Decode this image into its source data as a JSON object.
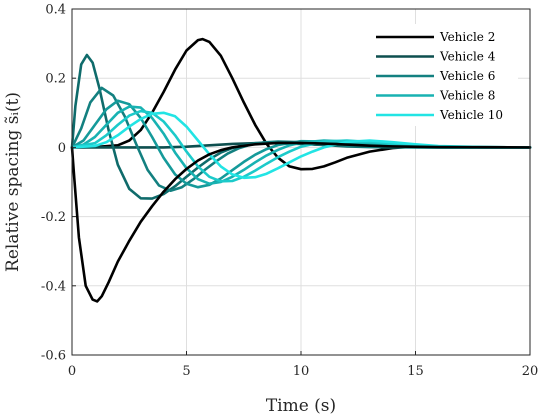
{
  "chart_data": {
    "type": "line",
    "xlabel": "Time (s)",
    "ylabel": "Relative spacing s̃ᵢ(t)",
    "xlim": [
      0,
      20
    ],
    "ylim": [
      -0.6,
      0.4
    ],
    "xticks": [
      "0",
      "5",
      "10",
      "15",
      "20"
    ],
    "xtick_values": [
      0,
      5,
      10,
      15,
      20
    ],
    "yticks": [
      "0.4",
      "0.2",
      "0",
      "-0.2",
      "-0.4",
      "-0.6"
    ],
    "ytick_values": [
      0.4,
      0.2,
      0,
      -0.2,
      -0.4,
      -0.6
    ],
    "grid": true,
    "legend_position": "top-right",
    "series": [
      {
        "name": "Vehicle 2",
        "color": "#000000",
        "x": [
          0,
          1,
          2,
          2.5,
          3,
          3.5,
          4,
          4.5,
          5,
          5.5,
          5.7,
          6,
          6.5,
          7,
          7.5,
          8,
          8.5,
          9,
          9.5,
          10,
          10.5,
          11,
          11.5,
          12,
          13,
          14,
          15,
          16,
          17,
          20
        ],
        "y": [
          0,
          0.001,
          0.006,
          0.02,
          0.05,
          0.1,
          0.16,
          0.225,
          0.28,
          0.31,
          0.313,
          0.305,
          0.265,
          0.2,
          0.13,
          0.065,
          0.01,
          -0.03,
          -0.055,
          -0.063,
          -0.062,
          -0.055,
          -0.043,
          -0.03,
          -0.012,
          -0.002,
          0.003,
          0.002,
          0.001,
          0
        ]
      },
      {
        "name": "Vehicle 4",
        "color": "#0d4f4f",
        "x": [
          0,
          1,
          2,
          3,
          4,
          5,
          6,
          7,
          8,
          9,
          10,
          11,
          12,
          14,
          17,
          20
        ],
        "y": [
          0,
          0,
          0,
          0,
          0,
          0.002,
          0.006,
          0.01,
          0.012,
          0.012,
          0.01,
          0.007,
          0.004,
          0.001,
          0,
          0
        ]
      },
      {
        "name": "",
        "color": "#0f6b6b",
        "x": [
          0,
          0.15,
          0.4,
          0.65,
          0.9,
          1.2,
          1.6,
          2,
          2.5,
          3,
          3.5,
          4,
          4.5,
          5,
          5.5,
          6,
          6.5,
          7,
          7.5,
          8,
          8.5,
          9,
          10,
          11,
          12,
          13,
          15,
          20
        ],
        "y": [
          0,
          0.12,
          0.24,
          0.267,
          0.245,
          0.17,
          0.05,
          -0.05,
          -0.12,
          -0.147,
          -0.148,
          -0.135,
          -0.112,
          -0.085,
          -0.058,
          -0.034,
          -0.015,
          -0.002,
          0.007,
          0.012,
          0.014,
          0.014,
          0.011,
          0.007,
          0.003,
          0.001,
          0,
          0
        ]
      },
      {
        "name": "Vehicle 6",
        "color": "#138080",
        "x": [
          0,
          0.4,
          0.8,
          1.3,
          1.8,
          2.3,
          2.8,
          3.3,
          3.8,
          4.3,
          4.8,
          5.3,
          5.8,
          6.3,
          6.8,
          7.3,
          7.8,
          8.3,
          9,
          10,
          11,
          12,
          13,
          14,
          16,
          20
        ],
        "y": [
          0,
          0.055,
          0.13,
          0.172,
          0.15,
          0.09,
          0.01,
          -0.065,
          -0.11,
          -0.125,
          -0.115,
          -0.092,
          -0.065,
          -0.04,
          -0.018,
          -0.002,
          0.008,
          0.014,
          0.017,
          0.015,
          0.01,
          0.005,
          0.002,
          0.001,
          0,
          0
        ]
      },
      {
        "name": "",
        "color": "#159a9a",
        "x": [
          0,
          0.5,
          1,
          1.5,
          2,
          2.5,
          3,
          3.5,
          4,
          4.5,
          5,
          5.5,
          6,
          6.5,
          7,
          7.5,
          8,
          8.5,
          9,
          10,
          11,
          12,
          13,
          14,
          16,
          20
        ],
        "y": [
          0,
          0.02,
          0.065,
          0.11,
          0.135,
          0.125,
          0.085,
          0.03,
          -0.03,
          -0.078,
          -0.105,
          -0.115,
          -0.108,
          -0.09,
          -0.066,
          -0.042,
          -0.021,
          -0.005,
          0.007,
          0.018,
          0.017,
          0.011,
          0.006,
          0.002,
          0,
          0
        ]
      },
      {
        "name": "Vehicle 8",
        "color": "#18b2b2",
        "x": [
          0,
          0.5,
          1,
          1.5,
          2,
          2.5,
          3,
          3.5,
          4,
          4.5,
          5,
          5.5,
          6,
          6.5,
          7,
          7.5,
          8,
          8.5,
          9,
          9.5,
          10,
          11,
          12,
          13,
          14,
          15,
          17,
          20
        ],
        "y": [
          0,
          0.008,
          0.03,
          0.065,
          0.1,
          0.118,
          0.115,
          0.085,
          0.04,
          -0.015,
          -0.06,
          -0.092,
          -0.105,
          -0.1,
          -0.085,
          -0.065,
          -0.043,
          -0.023,
          -0.007,
          0.006,
          0.014,
          0.02,
          0.017,
          0.011,
          0.006,
          0.002,
          0,
          0
        ]
      },
      {
        "name": "",
        "color": "#1ccaca",
        "x": [
          0,
          1,
          1.5,
          2,
          2.5,
          3,
          3.5,
          4,
          4.5,
          5,
          5.5,
          6,
          6.5,
          7,
          7.5,
          8,
          8.5,
          9,
          9.5,
          10,
          11,
          12,
          13,
          14,
          15,
          17,
          20
        ],
        "y": [
          0,
          0.012,
          0.035,
          0.065,
          0.092,
          0.105,
          0.1,
          0.075,
          0.035,
          -0.012,
          -0.055,
          -0.085,
          -0.098,
          -0.097,
          -0.085,
          -0.067,
          -0.047,
          -0.028,
          -0.012,
          0.002,
          0.017,
          0.02,
          0.016,
          0.01,
          0.004,
          0.001,
          0
        ]
      },
      {
        "name": "Vehicle 10",
        "color": "#22e4e4",
        "x": [
          0,
          1,
          1.5,
          2,
          2.5,
          3,
          3.5,
          4,
          4.5,
          5,
          5.5,
          6,
          6.5,
          7,
          7.5,
          8,
          8.5,
          9,
          9.5,
          10,
          10.5,
          11,
          12,
          13,
          14,
          15,
          16,
          18,
          20
        ],
        "y": [
          0,
          0.004,
          0.015,
          0.035,
          0.06,
          0.082,
          0.097,
          0.1,
          0.09,
          0.06,
          0.02,
          -0.02,
          -0.055,
          -0.078,
          -0.088,
          -0.086,
          -0.076,
          -0.06,
          -0.043,
          -0.026,
          -0.012,
          0,
          0.016,
          0.02,
          0.015,
          0.009,
          0.004,
          0.001,
          0
        ]
      },
      {
        "name": "",
        "color": "#000000",
        "x": [
          0,
          0.1,
          0.3,
          0.6,
          0.9,
          1.1,
          1.3,
          1.6,
          2,
          2.5,
          3,
          3.5,
          4,
          4.5,
          5,
          5.5,
          6,
          6.5,
          7,
          8,
          9,
          10,
          11,
          12,
          13,
          14,
          16,
          20
        ],
        "y": [
          0,
          -0.09,
          -0.26,
          -0.4,
          -0.44,
          -0.445,
          -0.43,
          -0.39,
          -0.33,
          -0.27,
          -0.215,
          -0.17,
          -0.128,
          -0.092,
          -0.062,
          -0.038,
          -0.02,
          -0.008,
          0,
          0.009,
          0.013,
          0.013,
          0.011,
          0.008,
          0.005,
          0.003,
          0.001,
          0
        ]
      }
    ]
  }
}
